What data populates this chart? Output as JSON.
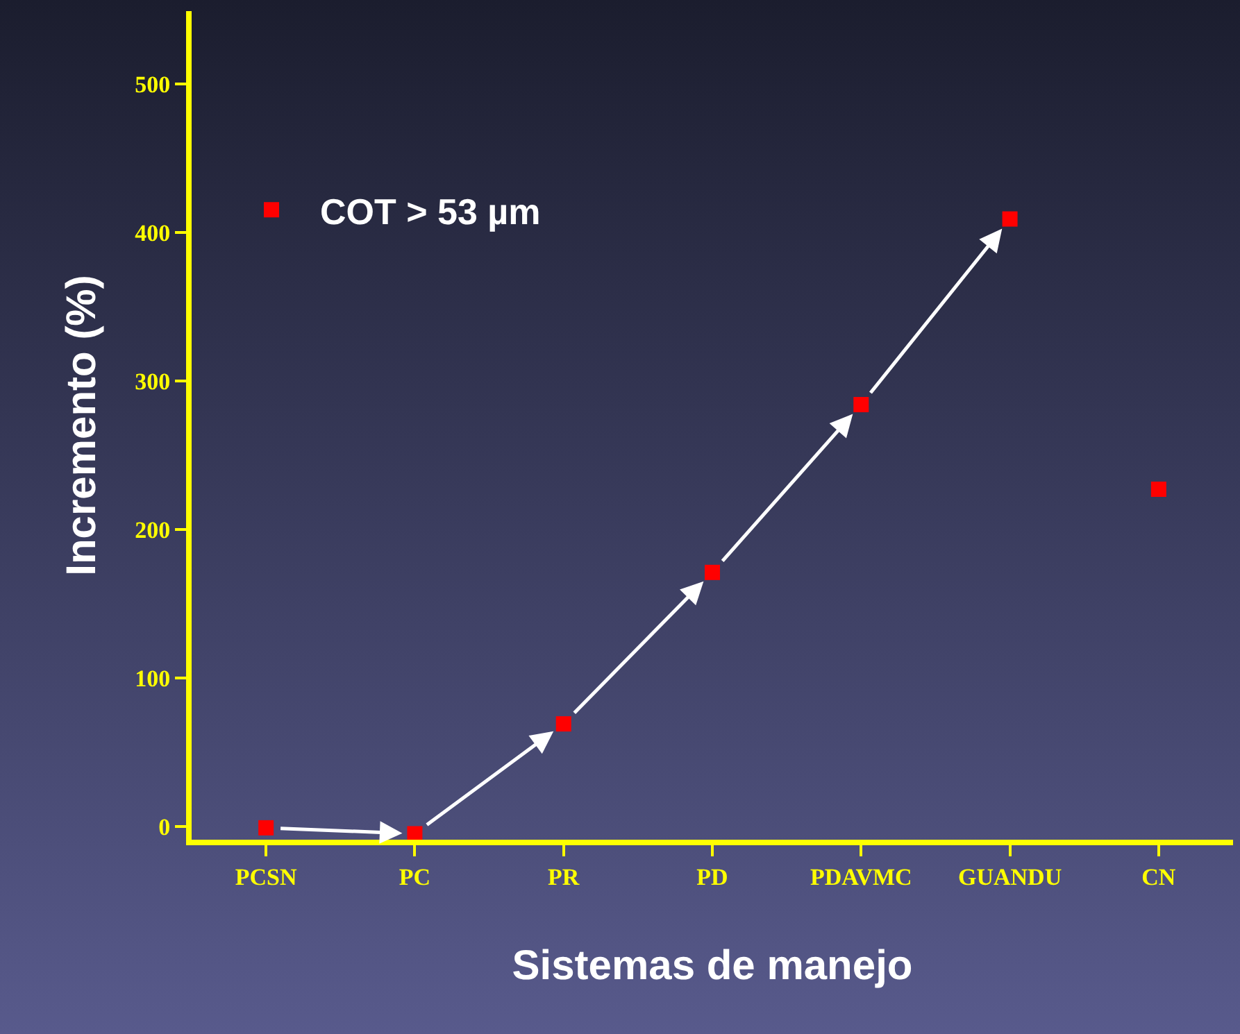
{
  "chart_data": {
    "type": "scatter",
    "xlabel": "Sistemas de manejo",
    "ylabel": "Incremento (%)",
    "categories": [
      "PCSN",
      "PC",
      "PR",
      "PD",
      "PDAVMC",
      "GUANDU",
      "CN"
    ],
    "series": [
      {
        "name": "COT > 53 µm",
        "color": "#ff0000",
        "values": [
          -1,
          -5,
          69,
          171,
          284,
          409,
          227
        ]
      }
    ],
    "ylim": [
      -9,
      549
    ],
    "yticks": [
      0,
      100,
      200,
      300,
      400,
      500
    ],
    "grid": false,
    "legend": "top left",
    "marker": "square"
  }
}
